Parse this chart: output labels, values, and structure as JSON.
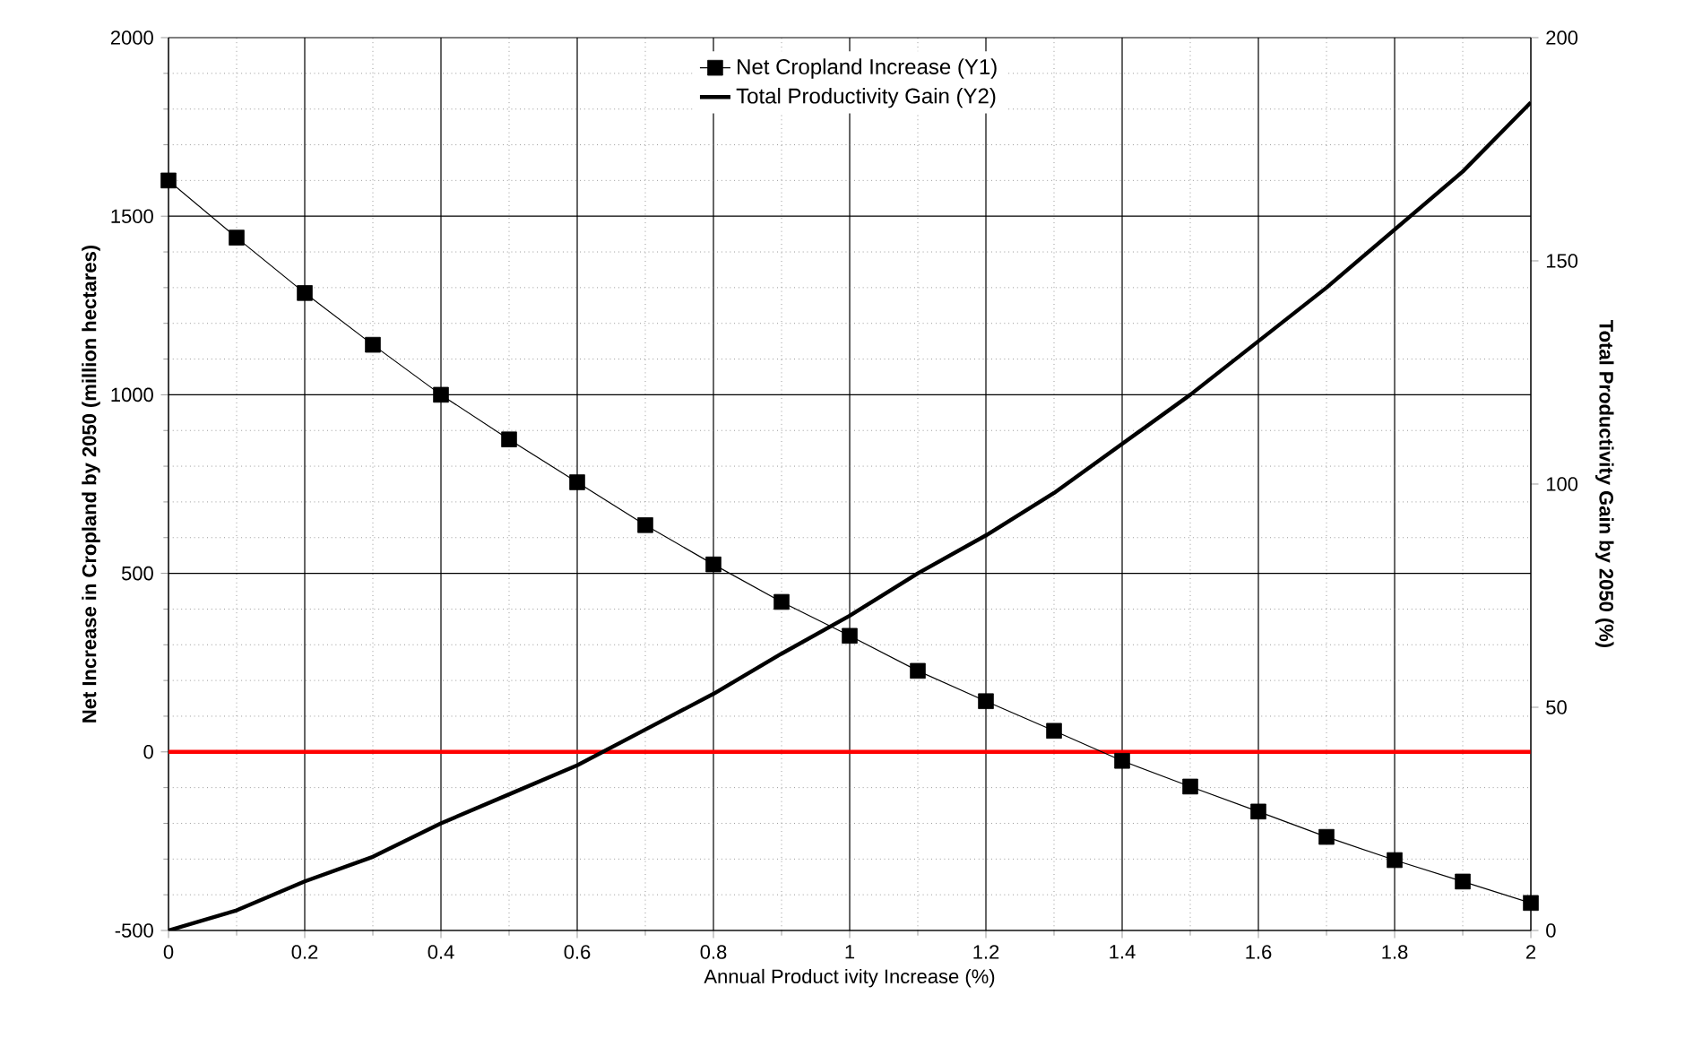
{
  "chart_data": {
    "type": "line",
    "xlabel": "Annual Product ivity Increase (%)",
    "ylabel": "Net Increase in Cropland by 2050 (million hectares)",
    "y2label": "Total Productivity Gain by 2050 (%)",
    "x": [
      0,
      0.1,
      0.2,
      0.3,
      0.4,
      0.5,
      0.6,
      0.7,
      0.8,
      0.9,
      1.0,
      1.1,
      1.2,
      1.3,
      1.4,
      1.5,
      1.6,
      1.7,
      1.8,
      1.9,
      2.0
    ],
    "series": [
      {
        "name": "Net Cropland Increase (Y1)",
        "color": "#000000",
        "marker": "square",
        "values": [
          1600,
          1440,
          1285,
          1140,
          1000,
          875,
          755,
          635,
          525,
          420,
          325,
          227,
          142,
          59,
          -25,
          -97,
          -167,
          -238,
          -303,
          -363,
          -423
        ]
      },
      {
        "name": "Total Productivity Gain (Y2)",
        "color": "#000000",
        "marker": "none",
        "axis": "y2",
        "values": [
          0,
          4.5,
          11,
          16.5,
          24,
          30.5,
          37,
          45,
          53,
          62,
          70.5,
          80,
          88.5,
          98,
          109,
          120,
          132,
          144,
          157,
          170,
          185.5
        ]
      }
    ],
    "xlim": [
      0,
      2
    ],
    "xticks": [
      0,
      0.2,
      0.4,
      0.6,
      0.8,
      1,
      1.2,
      1.4,
      1.6,
      1.8,
      2
    ],
    "ylim": [
      -500,
      2000
    ],
    "yticks": [
      -500,
      0,
      500,
      1000,
      1500,
      2000
    ],
    "y2lim": [
      0,
      200
    ],
    "y2ticks": [
      0,
      50,
      100,
      150,
      200
    ],
    "ref_lines": [
      {
        "axis": "y",
        "value": 0,
        "color": "#ff0000"
      }
    ],
    "grid": true,
    "legend": "top"
  }
}
